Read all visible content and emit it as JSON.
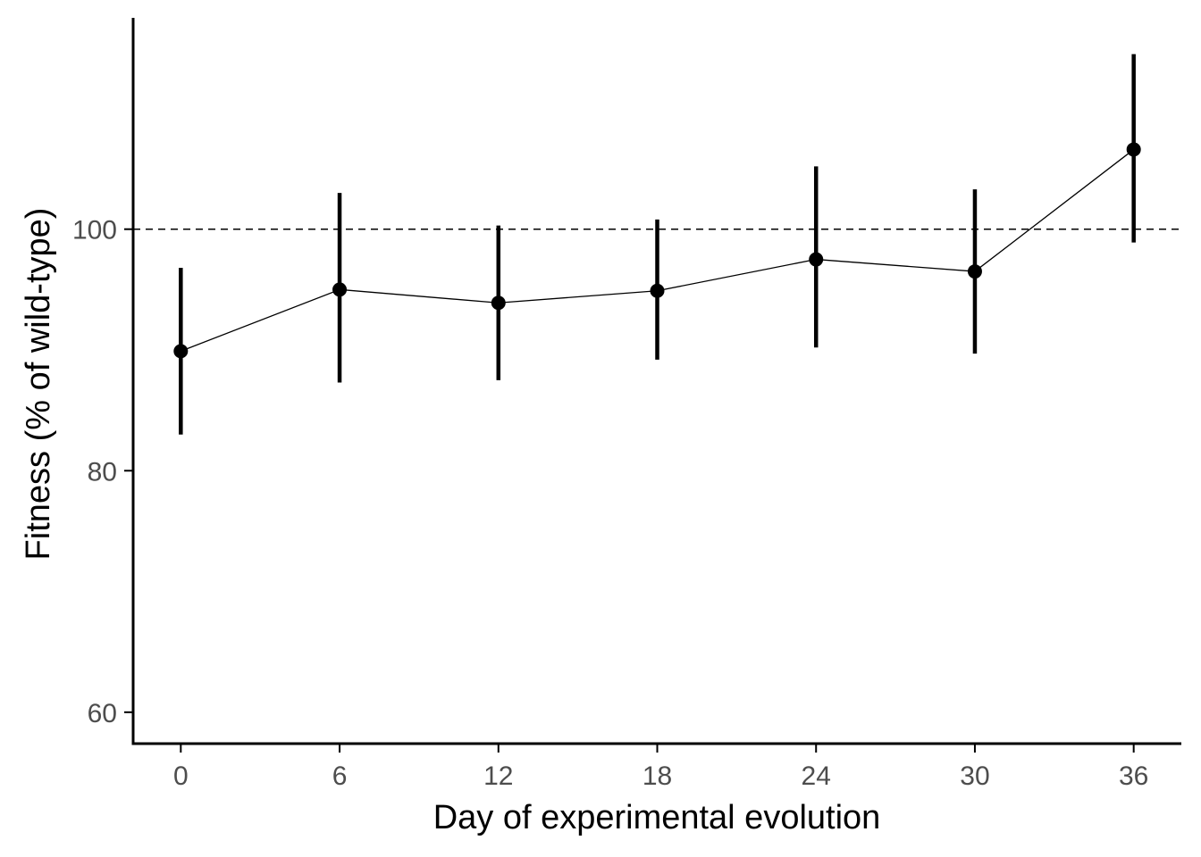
{
  "chart_data": {
    "type": "line",
    "title": "",
    "xlabel": "Day of experimental evolution",
    "ylabel": "Fitness (% of wild-type)",
    "x": [
      0,
      6,
      12,
      18,
      24,
      30,
      36
    ],
    "x_ticks": [
      "0",
      "6",
      "12",
      "18",
      "24",
      "30",
      "36"
    ],
    "y_ticks": [
      "60",
      "80",
      "100"
    ],
    "xlim": [
      -1.8,
      37.8
    ],
    "ylim": [
      57.4,
      117.5
    ],
    "series": [
      {
        "values": [
          89.9,
          95.0,
          93.9,
          94.9,
          97.5,
          96.5,
          106.6
        ],
        "error_lower": [
          83.0,
          87.3,
          87.5,
          89.2,
          90.2,
          89.7,
          98.9
        ],
        "error_upper": [
          96.8,
          103.0,
          100.3,
          100.8,
          105.2,
          103.3,
          114.5
        ]
      }
    ],
    "reference_line": {
      "y": 100,
      "style": "dashed"
    },
    "grid": false,
    "legend": "none",
    "colors": {
      "line": "#000000",
      "point": "#000000",
      "axis": "#000000",
      "tick_text": "#4d4d4d"
    }
  }
}
